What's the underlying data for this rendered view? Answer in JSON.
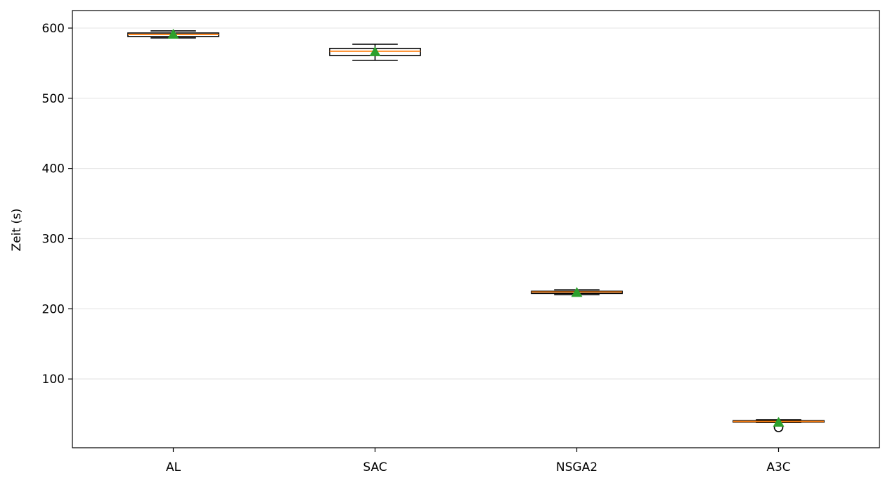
{
  "chart_data": {
    "type": "box",
    "title": "",
    "xlabel": "",
    "ylabel": "Zeit (s)",
    "ylim": [
      2,
      625
    ],
    "yticks": [
      100,
      200,
      300,
      400,
      500,
      600
    ],
    "grid": "y",
    "categories": [
      "AL",
      "SAC",
      "NSGA2",
      "A3C"
    ],
    "boxes": [
      {
        "label": "AL",
        "whisker_low": 586,
        "q1": 588,
        "median": 591,
        "q3": 593,
        "whisker_high": 596,
        "mean": 591,
        "outliers": []
      },
      {
        "label": "SAC",
        "whisker_low": 554,
        "q1": 561,
        "median": 567,
        "q3": 571,
        "whisker_high": 577,
        "mean": 566,
        "outliers": []
      },
      {
        "label": "NSGA2",
        "whisker_low": 220,
        "q1": 222,
        "median": 224,
        "q3": 225,
        "whisker_high": 227,
        "mean": 223,
        "outliers": []
      },
      {
        "label": "A3C",
        "whisker_low": 38,
        "q1": 38.5,
        "median": 39.5,
        "q3": 40.5,
        "whisker_high": 42,
        "mean": 38,
        "outliers": [
          31
        ]
      }
    ],
    "colors": {
      "box_edge": "#000000",
      "median": "#ff7f0e",
      "mean_marker": "#2ca02c",
      "grid": "#e6e6e6"
    }
  }
}
